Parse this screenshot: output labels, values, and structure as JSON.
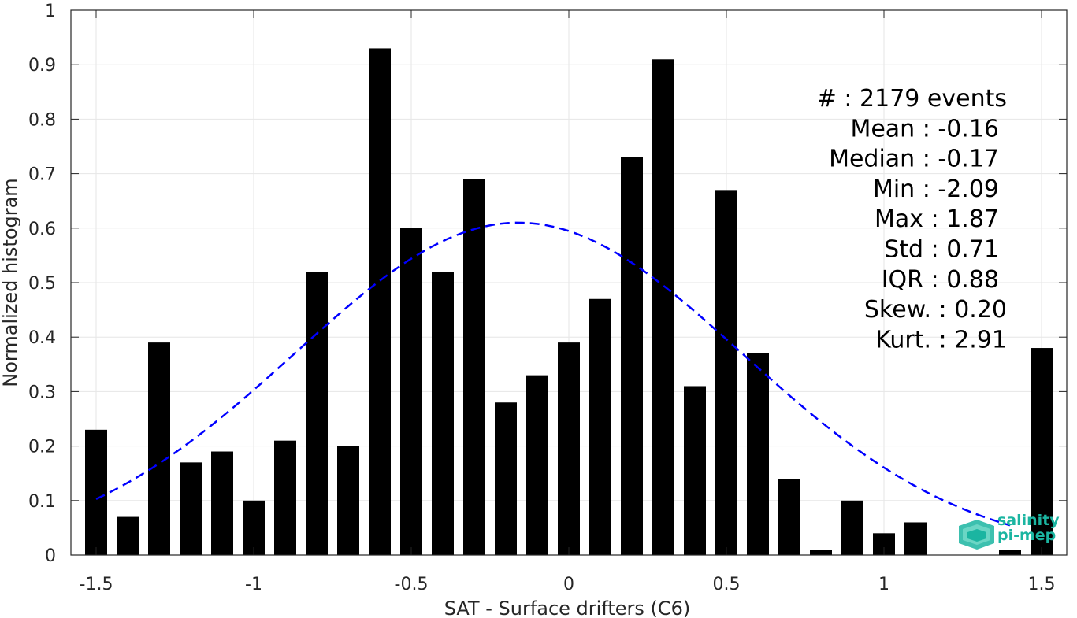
{
  "chart_data": {
    "type": "bar",
    "xlabel": "SAT - Surface drifters (C6)",
    "ylabel": "Normalized histogram",
    "xlim": [
      -1.58,
      1.58
    ],
    "ylim": [
      0,
      1
    ],
    "grid": true,
    "x_ticks": [
      -1.5,
      -1,
      -0.5,
      0,
      0.5,
      1,
      1.5
    ],
    "x_tick_labels": [
      "-1.5",
      "-1",
      "-0.5",
      "0",
      "0.5",
      "1",
      "1.5"
    ],
    "y_ticks": [
      0,
      0.1,
      0.2,
      0.3,
      0.4,
      0.5,
      0.6,
      0.7,
      0.8,
      0.9,
      1
    ],
    "y_tick_labels": [
      "0",
      "0.1",
      "0.2",
      "0.3",
      "0.4",
      "0.5",
      "0.6",
      "0.7",
      "0.8",
      "0.9",
      "1"
    ],
    "bar_width": 0.07,
    "bar_color": "#000000",
    "bins": [
      -1.5,
      -1.4,
      -1.3,
      -1.2,
      -1.1,
      -1.0,
      -0.9,
      -0.8,
      -0.7,
      -0.6,
      -0.5,
      -0.4,
      -0.3,
      -0.2,
      -0.1,
      0.0,
      0.1,
      0.2,
      0.3,
      0.4,
      0.5,
      0.6,
      0.7,
      0.8,
      0.9,
      1.0,
      1.1,
      1.2,
      1.3,
      1.4,
      1.5
    ],
    "values": [
      0.23,
      0.07,
      0.39,
      0.17,
      0.19,
      0.1,
      0.21,
      0.52,
      0.2,
      0.93,
      0.6,
      0.52,
      0.69,
      0.28,
      0.33,
      0.39,
      0.47,
      0.73,
      0.91,
      0.31,
      0.67,
      0.37,
      0.14,
      0.01,
      0.1,
      0.04,
      0.06,
      0.0,
      0.0,
      0.01,
      0.38
    ],
    "fit": {
      "type": "normal",
      "mean": -0.16,
      "std": 0.71,
      "peak": 0.61,
      "x_range": [
        -1.5,
        1.4
      ],
      "color": "#0000ff",
      "style": "dashed"
    },
    "stats_box": [
      "#  : 2179 events",
      "Mean : -0.16",
      "Median : -0.17",
      "Min : -2.09",
      "Max : 1.87",
      "Std : 0.71",
      "IQR : 0.88",
      "Skew. : 0.20",
      "Kurt. : 2.91"
    ],
    "logo": {
      "line1": "salinity",
      "line2": "pi-mep",
      "color": "#1bb5a1"
    }
  }
}
